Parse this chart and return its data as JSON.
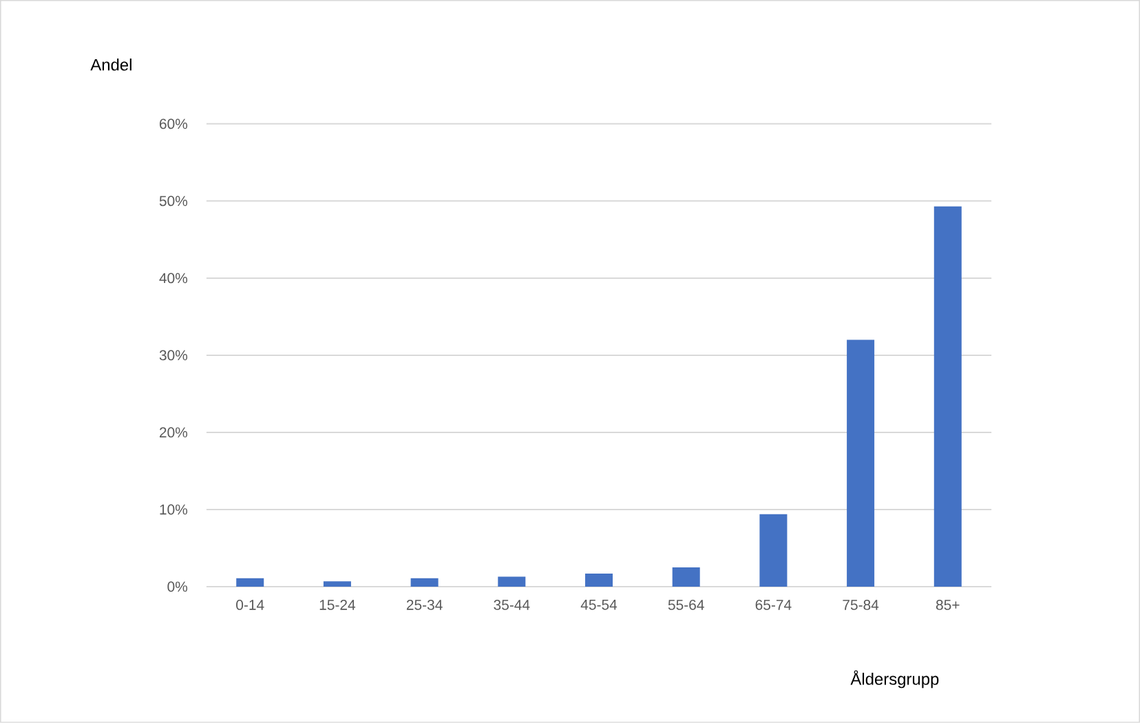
{
  "chart_data": {
    "type": "bar",
    "xlabel": "Åldersgrupp",
    "ylabel": "Andel",
    "categories": [
      "0-14",
      "15-24",
      "25-34",
      "35-44",
      "45-54",
      "55-64",
      "65-74",
      "75-84",
      "85+"
    ],
    "values": [
      1.1,
      0.7,
      1.1,
      1.3,
      1.7,
      2.5,
      9.4,
      32,
      49.3
    ],
    "color": "#4472c4",
    "ylim": [
      0,
      60
    ],
    "yticks": [
      {
        "value": 0,
        "label": "0%"
      },
      {
        "value": 10,
        "label": "10%"
      },
      {
        "value": 20,
        "label": "20%"
      },
      {
        "value": 30,
        "label": "30%"
      },
      {
        "value": 40,
        "label": "40%"
      },
      {
        "value": 50,
        "label": "50%"
      },
      {
        "value": 60,
        "label": "60%"
      }
    ],
    "grid": "y"
  }
}
